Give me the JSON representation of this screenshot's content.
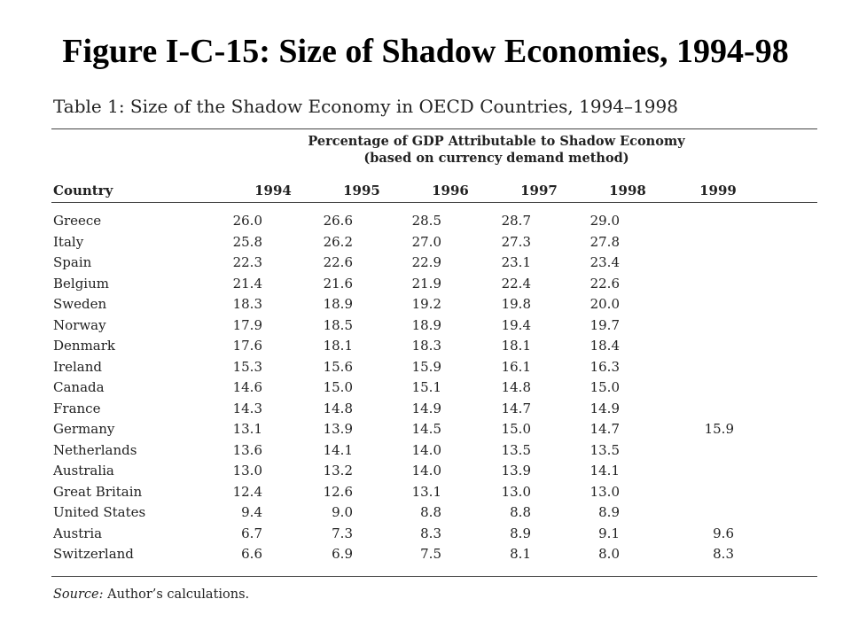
{
  "slide": {
    "title": "Figure I-C-15: Size of Shadow Economies, 1994-98"
  },
  "table": {
    "caption": "Table 1: Size of the Shadow Economy in OECD Countries, 1994–1998",
    "spanner_line1": "Percentage of GDP Attributable to Shadow Economy",
    "spanner_line2": "(based on currency demand method)",
    "headers": [
      "Country",
      "1994",
      "1995",
      "1996",
      "1997",
      "1998",
      "1999"
    ],
    "rows": [
      {
        "country": "Greece",
        "values": [
          "26.0",
          "26.6",
          "28.5",
          "28.7",
          "29.0",
          ""
        ]
      },
      {
        "country": "Italy",
        "values": [
          "25.8",
          "26.2",
          "27.0",
          "27.3",
          "27.8",
          ""
        ]
      },
      {
        "country": "Spain",
        "values": [
          "22.3",
          "22.6",
          "22.9",
          "23.1",
          "23.4",
          ""
        ]
      },
      {
        "country": "Belgium",
        "values": [
          "21.4",
          "21.6",
          "21.9",
          "22.4",
          "22.6",
          ""
        ]
      },
      {
        "country": "Sweden",
        "values": [
          "18.3",
          "18.9",
          "19.2",
          "19.8",
          "20.0",
          ""
        ]
      },
      {
        "country": "Norway",
        "values": [
          "17.9",
          "18.5",
          "18.9",
          "19.4",
          "19.7",
          ""
        ]
      },
      {
        "country": "Denmark",
        "values": [
          "17.6",
          "18.1",
          "18.3",
          "18.1",
          "18.4",
          ""
        ]
      },
      {
        "country": "Ireland",
        "values": [
          "15.3",
          "15.6",
          "15.9",
          "16.1",
          "16.3",
          ""
        ]
      },
      {
        "country": "Canada",
        "values": [
          "14.6",
          "15.0",
          "15.1",
          "14.8",
          "15.0",
          ""
        ]
      },
      {
        "country": "France",
        "values": [
          "14.3",
          "14.8",
          "14.9",
          "14.7",
          "14.9",
          ""
        ]
      },
      {
        "country": "Germany",
        "values": [
          "13.1",
          "13.9",
          "14.5",
          "15.0",
          "14.7",
          "15.9"
        ]
      },
      {
        "country": "Netherlands",
        "values": [
          "13.6",
          "14.1",
          "14.0",
          "13.5",
          "13.5",
          ""
        ]
      },
      {
        "country": "Australia",
        "values": [
          "13.0",
          "13.2",
          "14.0",
          "13.9",
          "14.1",
          ""
        ]
      },
      {
        "country": "Great Britain",
        "values": [
          "12.4",
          "12.6",
          "13.1",
          "13.0",
          "13.0",
          ""
        ]
      },
      {
        "country": "United States",
        "values": [
          "9.4",
          "9.0",
          "8.8",
          "8.8",
          "8.9",
          ""
        ]
      },
      {
        "country": "Austria",
        "values": [
          "6.7",
          "7.3",
          "8.3",
          "8.9",
          "9.1",
          "9.6"
        ]
      },
      {
        "country": "Switzerland",
        "values": [
          "6.6",
          "6.9",
          "7.5",
          "8.1",
          "8.0",
          "8.3"
        ]
      }
    ],
    "source_label": "Source:",
    "source_text": " Author’s calculations."
  }
}
